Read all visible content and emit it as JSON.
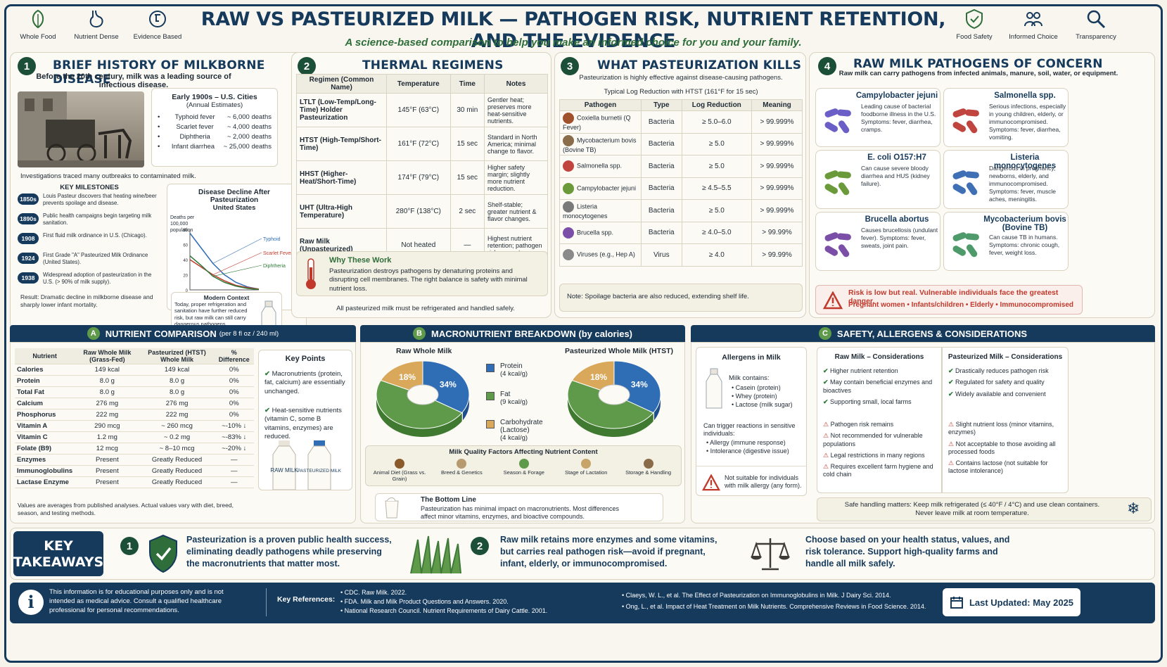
{
  "header": {
    "title": "RAW VS PASTEURIZED MILK — PATHOGEN RISK, NUTRIENT RETENTION, AND THE EVIDENCE",
    "subtitle": "A science-based comparison to help you make an informed choice for you and your family.",
    "left_badges": [
      "Whole Food",
      "Nutrient Dense",
      "Evidence Based"
    ],
    "right_badges": [
      "Food Safety",
      "Informed Choice",
      "Transparency"
    ]
  },
  "history": {
    "num": "1",
    "title": "BRIEF HISTORY OF MILKBORNE DISEASE",
    "intro": "Before the 20th century, milk was a leading source of infectious disease.",
    "box_title": "Early 1900s – U.S. Cities",
    "box_sub": "(Annual Estimates)",
    "deaths": [
      {
        "name": "Typhoid fever",
        "value": "~ 6,000 deaths"
      },
      {
        "name": "Scarlet fever",
        "value": "~ 4,000 deaths"
      },
      {
        "name": "Diphtheria",
        "value": "~ 2,000 deaths"
      },
      {
        "name": "Infant diarrhea",
        "value": "~ 25,000 deaths"
      }
    ],
    "investigations": "Investigations traced many outbreaks to contaminated milk.",
    "milestones_title": "KEY MILESTONES",
    "milestones": [
      {
        "year": "1850s",
        "text": "Louis Pasteur discovers that heating wine/beer prevents spoilage and disease."
      },
      {
        "year": "1890s",
        "text": "Public health campaigns begin targeting milk sanitation."
      },
      {
        "year": "1908",
        "text": "First fluid milk ordinance in U.S. (Chicago)."
      },
      {
        "year": "1924",
        "text": "First Grade \"A\" Pasteurized Milk Ordinance (United States)."
      },
      {
        "year": "1938",
        "text": "Widespread adoption of pasteurization in the U.S. (> 90% of milk supply)."
      }
    ],
    "result": "Result: Dramatic decline in milkborne disease and sharply lower infant mortality.",
    "decline_title": "Disease Decline After Pasteurization",
    "decline_sub": "United States",
    "decline_ylabel": "Deaths per 100,000 population",
    "decline_series": [
      "Typhoid",
      "Scarlet Fever",
      "Diphtheria"
    ],
    "decline_ticks_x": [
      "1900",
      "1920",
      "1940",
      "1960"
    ],
    "decline_ticks_y": [
      "80",
      "60",
      "40",
      "20",
      "0"
    ],
    "modern_title": "Modern Context",
    "modern_text": "Today, proper refrigeration and sanitation have further reduced risk, but raw milk can still carry dangerous pathogens."
  },
  "thermal": {
    "num": "2",
    "title": "THERMAL REGIMENS",
    "headers": [
      "Regimen (Common Name)",
      "Temperature",
      "Time",
      "Notes"
    ],
    "rows": [
      [
        "LTLT (Low-Temp/Long-Time) Holder Pasteurization",
        "145°F (63°C)",
        "30 min",
        "Gentler heat; preserves more heat-sensitive nutrients."
      ],
      [
        "HTST (High-Temp/Short-Time)",
        "161°F (72°C)",
        "15 sec",
        "Standard in North America; minimal change to flavor."
      ],
      [
        "HHST (Higher-Heat/Short-Time)",
        "174°F (79°C)",
        "15 sec",
        "Higher safety margin; slightly more nutrient reduction."
      ],
      [
        "UHT (Ultra-High Temperature)",
        "280°F (138°C)",
        "2 sec",
        "Shelf-stable; greater nutrient & flavor changes."
      ],
      [
        "Raw Milk (Unpasteurized)",
        "Not heated",
        "—",
        "Highest nutrient retention; pathogen risk present."
      ]
    ],
    "why_title": "Why These Work",
    "why_text": "Pasteurization destroys pathogens by denaturing proteins and disrupting cell membranes. The right balance is safety with minimal nutrient loss.",
    "footer": "All pasteurized milk must be refrigerated and handled safely."
  },
  "kills": {
    "num": "3",
    "title": "WHAT PASTEURIZATION KILLS",
    "intro": "Pasteurization is highly effective against disease-causing pathogens.",
    "sub": "Typical Log Reduction with HTST (161°F for 15 sec)",
    "headers": [
      "Pathogen",
      "Type",
      "Log Reduction",
      "Meaning"
    ],
    "rows": [
      [
        "Coxiella burnetii (Q Fever)",
        "Bacteria",
        "≥ 5.0–6.0",
        "> 99.999%"
      ],
      [
        "Mycobacterium bovis (Bovine TB)",
        "Bacteria",
        "≥ 5.0",
        "> 99.999%"
      ],
      [
        "Salmonella spp.",
        "Bacteria",
        "≥ 5.0",
        "> 99.999%"
      ],
      [
        "Campylobacter jejuni",
        "Bacteria",
        "≥ 4.5–5.5",
        "> 99.999%"
      ],
      [
        "Listeria monocytogenes",
        "Bacteria",
        "≥ 5.0",
        "> 99.999%"
      ],
      [
        "Brucella spp.",
        "Bacteria",
        "≥ 4.0–5.0",
        "> 99.99%"
      ],
      [
        "Viruses (e.g., Hep A)",
        "Virus",
        "≥ 4.0",
        "> 99.99%"
      ]
    ],
    "note": "Note: Spoilage bacteria are also reduced, extending shelf life."
  },
  "pathogens": {
    "num": "4",
    "title": "RAW MILK PATHOGENS OF CONCERN",
    "intro": "Raw milk can carry pathogens from infected animals, manure, soil, water, or equipment.",
    "cards": [
      {
        "name": "Campylobacter jejuni",
        "desc": "Leading cause of bacterial foodborne illness in the U.S. Symptoms: fever, diarrhea, cramps.",
        "color": "#6b5fc7"
      },
      {
        "name": "Salmonella spp.",
        "desc": "Serious infections, especially in young children, elderly, or immunocompromised. Symptoms: fever, diarrhea, vomiting.",
        "color": "#c0453f"
      },
      {
        "name": "E. coli O157:H7",
        "desc": "Can cause severe bloody diarrhea and HUS (kidney failure).",
        "color": "#6a9a3a"
      },
      {
        "name": "Listeria monocytogenes",
        "desc": "Dangerous in pregnancy, newborns, elderly, and immunocompromised. Symptoms: fever, muscle aches, meningitis.",
        "color": "#3f6fb5"
      },
      {
        "name": "Brucella abortus",
        "desc": "Causes brucellosis (undulant fever). Symptoms: fever, sweats, joint pain.",
        "color": "#7b4fa8"
      },
      {
        "name": "Mycobacterium bovis (Bovine TB)",
        "desc": "Can cause TB in humans. Symptoms: chronic cough, fever, weight loss.",
        "color": "#4f9a6a"
      }
    ],
    "risk": "Risk is low but real. Vulnerable individuals face the greatest danger.",
    "groups": "Pregnant women • Infants/children • Elderly • Immunocompromised"
  },
  "nutrient": {
    "letter": "A",
    "title": "NUTRIENT COMPARISON",
    "title_sub": "(per 8 fl oz / 240 ml)",
    "headers": [
      "Nutrient",
      "Raw Whole Milk (Grass-Fed)",
      "Pasteurized (HTST) Whole Milk",
      "% Difference"
    ],
    "rows": [
      [
        "Calories",
        "149 kcal",
        "149 kcal",
        "0%"
      ],
      [
        "Protein",
        "8.0 g",
        "8.0 g",
        "0%"
      ],
      [
        "Total Fat",
        "8.0 g",
        "8.0 g",
        "0%"
      ],
      [
        "Calcium",
        "276 mg",
        "276 mg",
        "0%"
      ],
      [
        "Phosphorus",
        "222 mg",
        "222 mg",
        "0%"
      ],
      [
        "Vitamin A",
        "290 mcg",
        "~ 260 mcg",
        "~-10% ↓"
      ],
      [
        "Vitamin C",
        "1.2 mg",
        "~ 0.2 mg",
        "~-83% ↓"
      ],
      [
        "Folate (B9)",
        "12 mcg",
        "~ 8–10 mcg",
        "~-20% ↓"
      ],
      [
        "Enzymes",
        "Present",
        "Greatly Reduced",
        "—"
      ],
      [
        "Immunoglobulins",
        "Present",
        "Greatly Reduced",
        "—"
      ],
      [
        "Lactase Enzyme",
        "Present",
        "Greatly Reduced",
        "—"
      ]
    ],
    "key_title": "Key Points",
    "key_points": [
      "Macronutrients (protein, fat, calcium) are essentially unchanged.",
      "Heat-sensitive nutrients (vitamin C, some B vitamins, enzymes) are reduced."
    ],
    "bottle_raw": "RAW MILK",
    "bottle_past": "PASTEURIZED MILK",
    "footnote": "Values are averages from published analyses. Actual values vary with diet, breed, season, and testing methods."
  },
  "macro": {
    "letter": "B",
    "title": "MACRONUTRIENT BREAKDOWN (by calories)",
    "pie_titles": [
      "Raw Whole Milk",
      "Pasteurized Whole Milk (HTST)"
    ],
    "legend": [
      {
        "label": "Protein",
        "sub": "(4 kcal/g)",
        "color": "#2f6db5"
      },
      {
        "label": "Fat",
        "sub": "(9 kcal/g)",
        "color": "#5f9a4a"
      },
      {
        "label": "Carbohydrate (Lactose)",
        "sub": "(4 kcal/g)",
        "color": "#d9a85a"
      }
    ],
    "factors_title": "Milk Quality Factors Affecting Nutrient Content",
    "factors": [
      "Animal Diet (Grass vs. Grain)",
      "Breed & Genetics",
      "Season & Forage",
      "Stage of Lactation",
      "Storage & Handling"
    ],
    "bottom_title": "The Bottom Line",
    "bottom_text": "Pasteurization has minimal impact on macronutrients. Most differences affect minor vitamins, enzymes, and bioactive compounds."
  },
  "chart_data": [
    {
      "type": "pie",
      "title": "Raw Whole Milk",
      "categories": [
        "Protein",
        "Fat",
        "Carbohydrate (Lactose)"
      ],
      "values": [
        34,
        48,
        18
      ],
      "labels": [
        "34%",
        "",
        "18%"
      ]
    },
    {
      "type": "pie",
      "title": "Pasteurized Whole Milk (HTST)",
      "categories": [
        "Protein",
        "Fat",
        "Carbohydrate (Lactose)"
      ],
      "values": [
        34,
        48,
        18
      ],
      "labels": [
        "34%",
        "",
        "18%"
      ]
    },
    {
      "type": "line",
      "title": "Disease Decline After Pasteurization",
      "x": [
        1900,
        1910,
        1920,
        1930,
        1940,
        1950,
        1960
      ],
      "series": [
        {
          "name": "Typhoid",
          "values": [
            75,
            55,
            35,
            20,
            10,
            4,
            1
          ]
        },
        {
          "name": "Scarlet Fever",
          "values": [
            40,
            30,
            20,
            12,
            6,
            3,
            1
          ]
        },
        {
          "name": "Diphtheria",
          "values": [
            45,
            32,
            18,
            10,
            5,
            2,
            0.5
          ]
        }
      ],
      "ylim": [
        0,
        80
      ]
    }
  ],
  "safety": {
    "letter": "C",
    "title": "SAFETY, ALLERGENS & CONSIDERATIONS",
    "allergens_title": "Allergens in Milk",
    "allergens_intro": "Milk contains:",
    "allergens": [
      "Casein (protein)",
      "Whey (protein)",
      "Lactose (milk sugar)"
    ],
    "trigger_intro": "Can trigger reactions in sensitive individuals:",
    "triggers": [
      "Allergy (immune response)",
      "Intolerance (digestive issue)"
    ],
    "not_suitable": "Not suitable for individuals with milk allergy (any form).",
    "raw_title": "Raw Milk – Considerations",
    "raw_pros": [
      "Higher nutrient retention",
      "May contain beneficial enzymes and bioactives",
      "Supporting small, local farms"
    ],
    "raw_cons": [
      "Pathogen risk remains",
      "Not recommended for vulnerable populations",
      "Legal restrictions in many regions",
      "Requires excellent farm hygiene and cold chain"
    ],
    "past_title": "Pasteurized Milk – Considerations",
    "past_pros": [
      "Drastically reduces pathogen risk",
      "Regulated for safety and quality",
      "Widely available and convenient"
    ],
    "past_cons": [
      "Slight nutrient loss (minor vitamins, enzymes)",
      "Not acceptable to those avoiding all processed foods",
      "Contains lactose (not suitable for lactose intolerance)"
    ],
    "handling": "Safe handling matters: Keep milk refrigerated (≤ 40°F / 4°C) and use clean containers. Never leave milk at room temperature."
  },
  "takeaways": {
    "title": "KEY TAKEAWAYS",
    "items": [
      {
        "num": "1",
        "text": "Pasteurization is a proven public health success, eliminating deadly pathogens while preserving the macronutrients that matter most."
      },
      {
        "num": "2",
        "text": "Raw milk retains more enzymes and some vitamins, but carries real pathogen risk—avoid if pregnant, infant, elderly, or immunocompromised."
      },
      {
        "num": "",
        "text": "Choose based on your health status, values, and risk tolerance. Support high-quality farms and handle all milk safely."
      }
    ]
  },
  "footer": {
    "disclaimer": "This information is for educational purposes only and is not intended as medical advice. Consult a qualified healthcare professional for personal recommendations.",
    "refs_label": "Key References:",
    "refs_left": [
      "CDC. Raw Milk. 2022.",
      "FDA. Milk and Milk Product Questions and Answers. 2020.",
      "National Research Council. Nutrient Requirements of Dairy Cattle. 2001."
    ],
    "refs_right": [
      "Claeys, W. L., et al. The Effect of Pasteurization on Immunoglobulins in Milk. J Dairy Sci. 2014.",
      "Ong, L., et al. Impact of Heat Treatment on Milk Nutrients. Comprehensive Reviews in Food Science. 2014."
    ],
    "updated": "Last Updated: May 2025"
  }
}
